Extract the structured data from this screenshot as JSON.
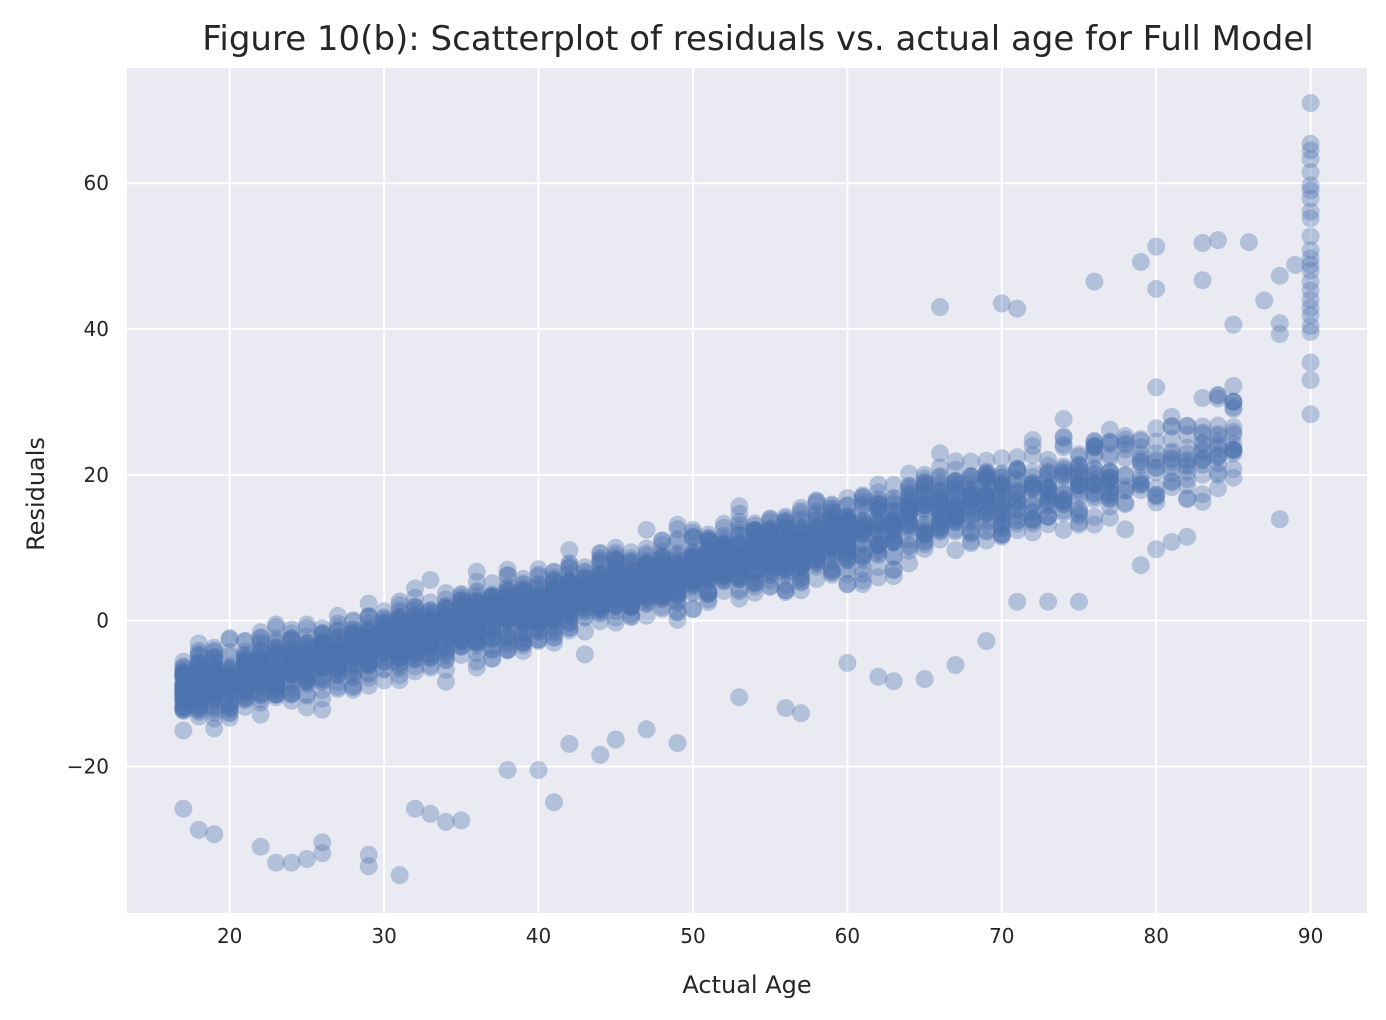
{
  "chart_data": {
    "type": "scatter",
    "title": "Figure 10(b): Scatterplot of residuals vs. actual age for Full Model",
    "xlabel": "Actual Age",
    "ylabel": "Residuals",
    "xlim": [
      13.35,
      93.65
    ],
    "ylim": [
      -40.1,
      75.8
    ],
    "xticks": [
      20,
      30,
      40,
      50,
      60,
      70,
      80,
      90
    ],
    "yticks": [
      -20,
      0,
      20,
      40,
      60
    ],
    "ytick_labels": [
      "−20",
      "0",
      "20",
      "40",
      "60"
    ],
    "grid": true,
    "background_color": "#eaeaf2",
    "point_color": "#4c72b0",
    "point_alpha": 0.35,
    "band": {
      "x_range": [
        17,
        90
      ],
      "center_at_17": -9.5,
      "slope_per_year": 0.5,
      "description_points_per_age": "dense"
    },
    "series": [
      {
        "points": [
          [
            17,
            -25.8
          ],
          [
            18,
            -28.7
          ],
          [
            19,
            -29.3
          ],
          [
            22,
            -31.0
          ],
          [
            23,
            -33.2
          ],
          [
            24,
            -33.2
          ],
          [
            25,
            -32.7
          ],
          [
            26,
            -30.4
          ],
          [
            26,
            -31.9
          ],
          [
            29,
            -32.1
          ],
          [
            29,
            -33.7
          ],
          [
            31,
            -34.9
          ],
          [
            41,
            -24.9
          ],
          [
            40,
            -20.5
          ],
          [
            44,
            -18.4
          ],
          [
            66,
            43.0
          ],
          [
            70,
            43.5
          ],
          [
            71,
            42.8
          ],
          [
            76,
            46.5
          ],
          [
            79,
            49.2
          ],
          [
            80,
            51.3
          ],
          [
            80,
            45.5
          ],
          [
            83,
            51.8
          ],
          [
            84,
            52.2
          ],
          [
            83,
            46.7
          ],
          [
            86,
            51.9
          ],
          [
            87,
            43.9
          ],
          [
            88,
            47.3
          ],
          [
            89,
            48.8
          ],
          [
            90,
            71.0
          ],
          [
            90,
            65.4
          ],
          [
            90,
            64.5
          ],
          [
            90,
            63.3
          ],
          [
            90,
            61.5
          ],
          [
            90,
            59.7
          ],
          [
            90,
            59.0
          ],
          [
            90,
            57.9
          ],
          [
            90,
            56.1
          ],
          [
            90,
            55.2
          ],
          [
            90,
            52.7
          ],
          [
            90,
            50.8
          ],
          [
            90,
            49.7
          ],
          [
            90,
            48.8
          ],
          [
            90,
            48.0
          ],
          [
            90,
            46.5
          ],
          [
            90,
            45.3
          ],
          [
            90,
            44.0
          ],
          [
            90,
            42.9
          ],
          [
            90,
            41.9
          ],
          [
            90,
            40.4
          ],
          [
            90,
            39.6
          ],
          [
            90,
            35.4
          ],
          [
            90,
            33.0
          ],
          [
            90,
            28.3
          ],
          [
            88,
            40.8
          ],
          [
            88,
            39.3
          ],
          [
            88,
            13.9
          ],
          [
            85,
            40.6
          ],
          [
            85,
            30.0
          ],
          [
            85,
            23.4
          ],
          [
            85,
            20.8
          ],
          [
            84,
            24.6
          ],
          [
            84,
            22.4
          ],
          [
            83,
            16.3
          ],
          [
            82,
            11.5
          ],
          [
            81,
            10.8
          ],
          [
            80,
            9.8
          ],
          [
            79,
            7.6
          ],
          [
            75,
            2.6
          ],
          [
            73,
            2.6
          ],
          [
            71,
            2.6
          ],
          [
            69,
            -2.8
          ],
          [
            67,
            -6.1
          ],
          [
            65,
            -8.0
          ],
          [
            63,
            -8.3
          ],
          [
            62,
            -7.7
          ],
          [
            60,
            -5.8
          ],
          [
            57,
            -12.7
          ],
          [
            56,
            -12.0
          ],
          [
            53,
            -10.5
          ],
          [
            49,
            -16.8
          ],
          [
            47,
            -14.9
          ],
          [
            45,
            -16.3
          ],
          [
            42,
            -16.9
          ],
          [
            38,
            -20.5
          ],
          [
            35,
            -27.4
          ],
          [
            34,
            -27.6
          ],
          [
            33,
            -26.5
          ],
          [
            32,
            -25.8
          ]
        ]
      }
    ]
  }
}
